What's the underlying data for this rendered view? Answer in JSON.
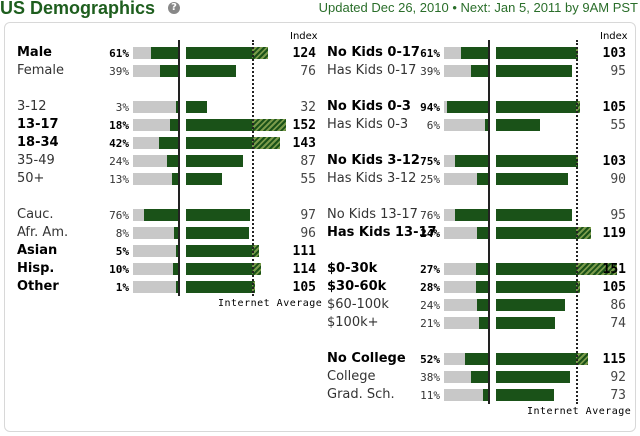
{
  "header": {
    "title": "US Demographics",
    "updated": "Updated Dec 26, 2010 • Next: Jan 5, 2011 by 9AM PST"
  },
  "column_header": "Index",
  "axis_label": "Internet Average",
  "colors": {
    "bar": "#1a5218",
    "track": "#c8c8c8",
    "title": "#1e5e1e"
  },
  "chart_data": [
    {
      "type": "bar",
      "title": "",
      "groups": [
        {
          "rows": [
            {
              "label": "Male",
              "pct": "61%",
              "index": 124,
              "bold": true
            },
            {
              "label": "Female",
              "pct": "39%",
              "index": 76,
              "bold": false
            }
          ]
        },
        {
          "rows": [
            {
              "label": "3-12",
              "pct": "3%",
              "index": 32,
              "bold": false
            },
            {
              "label": "13-17",
              "pct": "18%",
              "index": 152,
              "bold": true
            },
            {
              "label": "18-34",
              "pct": "42%",
              "index": 143,
              "bold": true
            },
            {
              "label": "35-49",
              "pct": "24%",
              "index": 87,
              "bold": false
            },
            {
              "label": "50+",
              "pct": "13%",
              "index": 55,
              "bold": false
            }
          ]
        },
        {
          "rows": [
            {
              "label": "Cauc.",
              "pct": "76%",
              "index": 97,
              "bold": false
            },
            {
              "label": "Afr. Am.",
              "pct": "8%",
              "index": 96,
              "bold": false
            },
            {
              "label": "Asian",
              "pct": "5%",
              "index": 111,
              "bold": true
            },
            {
              "label": "Hisp.",
              "pct": "10%",
              "index": 114,
              "bold": true
            },
            {
              "label": "Other",
              "pct": "1%",
              "index": 105,
              "bold": true
            }
          ]
        }
      ]
    },
    {
      "type": "bar",
      "title": "",
      "groups": [
        {
          "rows": [
            {
              "label": "No Kids 0-17",
              "pct": "61%",
              "index": 103,
              "bold": true
            },
            {
              "label": "Has Kids 0-17",
              "pct": "39%",
              "index": 95,
              "bold": false
            }
          ]
        },
        {
          "rows": [
            {
              "label": "No Kids 0-3",
              "pct": "94%",
              "index": 105,
              "bold": true
            },
            {
              "label": "Has Kids 0-3",
              "pct": "6%",
              "index": 55,
              "bold": false
            }
          ]
        },
        {
          "rows": [
            {
              "label": "No Kids 3-12",
              "pct": "75%",
              "index": 103,
              "bold": true
            },
            {
              "label": "Has Kids 3-12",
              "pct": "25%",
              "index": 90,
              "bold": false
            }
          ]
        },
        {
          "rows": [
            {
              "label": "No Kids 13-17",
              "pct": "76%",
              "index": 95,
              "bold": false
            },
            {
              "label": "Has Kids 13-17",
              "pct": "24%",
              "index": 119,
              "bold": true
            }
          ]
        },
        {
          "rows": [
            {
              "label": "$0-30k",
              "pct": "27%",
              "index": 151,
              "bold": true
            },
            {
              "label": "$30-60k",
              "pct": "28%",
              "index": 105,
              "bold": true
            },
            {
              "label": "$60-100k",
              "pct": "24%",
              "index": 86,
              "bold": false
            },
            {
              "label": "$100k+",
              "pct": "21%",
              "index": 74,
              "bold": false
            }
          ]
        },
        {
          "rows": [
            {
              "label": "No College",
              "pct": "52%",
              "index": 115,
              "bold": true
            },
            {
              "label": "College",
              "pct": "38%",
              "index": 92,
              "bold": false
            },
            {
              "label": "Grad. Sch.",
              "pct": "11%",
              "index": 73,
              "bold": false
            }
          ]
        }
      ]
    }
  ]
}
